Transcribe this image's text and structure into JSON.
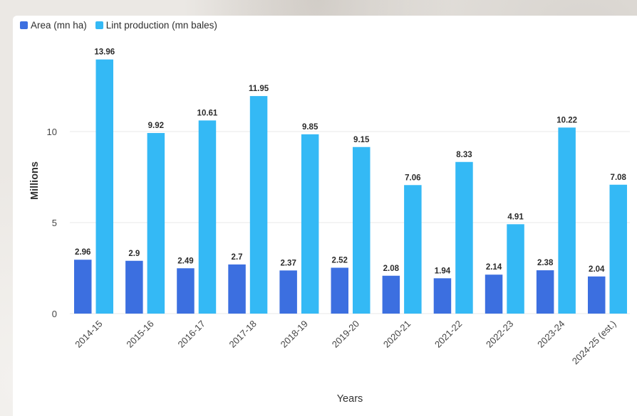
{
  "chart_data": {
    "type": "bar",
    "categories": [
      "2014-15",
      "2015-16",
      "2016-17",
      "2017-18",
      "2018-19",
      "2019-20",
      "2020-21",
      "2021-22",
      "2022-23",
      "2023-24",
      "2024-25 (est.)"
    ],
    "series": [
      {
        "name": "Area (mn ha)",
        "color": "#3c6fe0",
        "values": [
          2.96,
          2.9,
          2.49,
          2.7,
          2.37,
          2.52,
          2.08,
          1.94,
          2.14,
          2.38,
          2.04
        ],
        "labels": [
          "2.96",
          "2.9",
          "2.49",
          "2.7",
          "2.37",
          "2.52",
          "2.08",
          "1.94",
          "2.14",
          "2.38",
          "2.04"
        ]
      },
      {
        "name": "Lint production (mn bales)",
        "color": "#34b9f5",
        "values": [
          13.96,
          9.92,
          10.61,
          11.95,
          9.85,
          9.15,
          7.06,
          8.33,
          4.91,
          10.22,
          7.08
        ],
        "labels": [
          "13.96",
          "9.92",
          "10.61",
          "11.95",
          "9.85",
          "9.15",
          "7.06",
          "8.33",
          "4.91",
          "10.22",
          "7.08"
        ]
      }
    ],
    "xlabel": "Years",
    "ylabel": "Millions",
    "ylim": [
      0,
      15
    ],
    "yticks": [
      0,
      5,
      10
    ],
    "ytick_labels": [
      "0",
      "5",
      "10"
    ],
    "grid": true,
    "legend_position": "top-left"
  }
}
